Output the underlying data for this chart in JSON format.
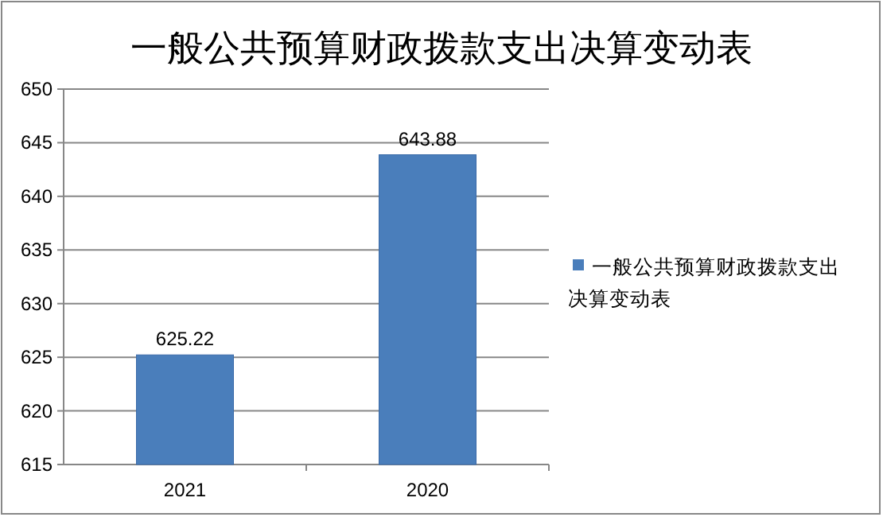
{
  "chart_data": {
    "type": "bar",
    "title": "一般公共预算财政拨款支出决算变动表",
    "categories": [
      "2021",
      "2020"
    ],
    "series": [
      {
        "name": "一般公共预算财政拨款支出决算变动表",
        "color": "#4a7ebb",
        "values": [
          625.22,
          643.88
        ]
      }
    ],
    "ylim": [
      615,
      650
    ],
    "yticks": [
      615,
      620,
      625,
      630,
      635,
      640,
      645,
      650
    ],
    "grid": "y",
    "legend": "right",
    "data_labels": true
  }
}
